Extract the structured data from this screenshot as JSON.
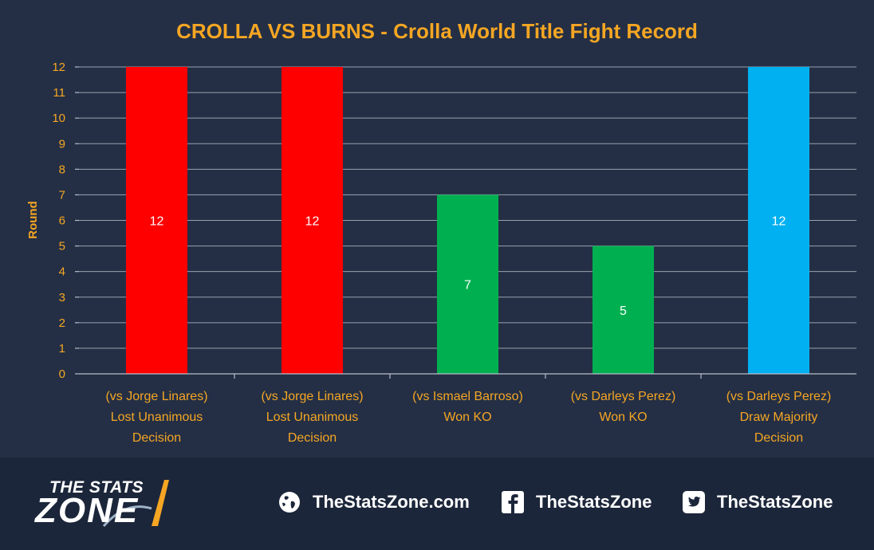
{
  "chart_data": {
    "type": "bar",
    "title": "CROLLA VS BURNS - Crolla World Title Fight Record",
    "xlabel": "",
    "ylabel": "Round",
    "ylim": [
      0,
      12
    ],
    "yticks": [
      "0",
      "1",
      "2",
      "3",
      "4",
      "5",
      "6",
      "7",
      "8",
      "9",
      "10",
      "11",
      "12"
    ],
    "grid": true,
    "categories": [
      [
        "(vs Jorge Linares)",
        "Lost Unanimous",
        "Decision"
      ],
      [
        "(vs Jorge Linares)",
        "Lost Unanimous",
        "Decision"
      ],
      [
        "(vs Ismael Barroso)",
        "Won KO"
      ],
      [
        "(vs Darleys Perez)",
        "Won KO"
      ],
      [
        "(vs Darleys Perez)",
        "Draw Majority",
        "Decision"
      ]
    ],
    "values": [
      12,
      12,
      7,
      5,
      12
    ],
    "data_labels": [
      "12",
      "12",
      "7",
      "5",
      "12"
    ],
    "colors": [
      "#ff0000",
      "#ff0000",
      "#00b050",
      "#00b050",
      "#00b0f0"
    ]
  },
  "footer": {
    "brand_top": "THE STATS",
    "brand_bottom": "ZONE",
    "website": "TheStatsZone.com",
    "facebook": "TheStatsZone",
    "twitter": "TheStatsZone",
    "icons": [
      "globe-icon",
      "facebook-icon",
      "twitter-icon"
    ]
  }
}
